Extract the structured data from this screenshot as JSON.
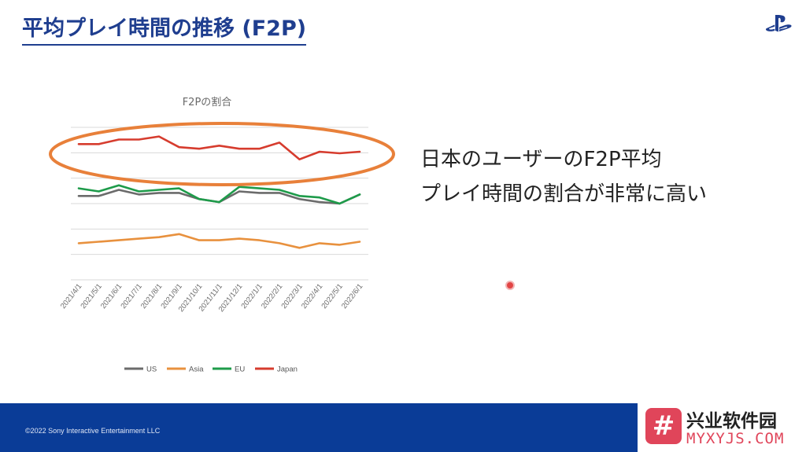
{
  "slide": {
    "title": "平均プレイ時間の推移 (F2P)",
    "callout_line1": "日本のユーザーのF2P平均",
    "callout_line2": "プレイ時間の割合が非常に高い",
    "copyright": "©2022 Sony Interactive Entertainment LLC"
  },
  "watermark": {
    "badge": "#",
    "cn": "兴业软件园",
    "en": "MYXYJS.COM"
  },
  "colors": {
    "title": "#1f3e8f",
    "footer": "#0a3c97",
    "highlight_ellipse": "#e8803a",
    "US": "#6b6b6b",
    "Asia": "#e8913e",
    "EU": "#1e9b4a",
    "Japan": "#d63c2e"
  },
  "chart_data": {
    "type": "line",
    "title": "F2Pの割合",
    "x": [
      "2021/4/1",
      "2021/5/1",
      "2021/6/1",
      "2021/7/1",
      "2021/8/1",
      "2021/9/1",
      "2021/10/1",
      "2021/11/1",
      "2021/12/1",
      "2022/1/1",
      "2022/2/1",
      "2022/3/1",
      "2022/4/1",
      "2022/5/1",
      "2022/6/1"
    ],
    "series": [
      {
        "name": "US",
        "values": [
          5.5,
          5.5,
          5.9,
          5.6,
          5.7,
          5.7,
          5.3,
          5.1,
          5.8,
          5.7,
          5.7,
          5.3,
          5.1,
          5.0,
          5.6
        ]
      },
      {
        "name": "Asia",
        "values": [
          2.4,
          2.5,
          2.6,
          2.7,
          2.8,
          3.0,
          2.6,
          2.6,
          2.7,
          2.6,
          2.4,
          2.1,
          2.4,
          2.3,
          2.5
        ]
      },
      {
        "name": "EU",
        "values": [
          6.0,
          5.8,
          6.2,
          5.8,
          5.9,
          6.0,
          5.3,
          5.1,
          6.1,
          6.0,
          5.9,
          5.5,
          5.4,
          5.0,
          5.6
        ]
      },
      {
        "name": "Japan",
        "values": [
          8.9,
          8.9,
          9.2,
          9.2,
          9.4,
          8.7,
          8.6,
          8.8,
          8.6,
          8.6,
          9.0,
          7.9,
          8.4,
          8.3,
          8.4
        ]
      }
    ],
    "ylim": [
      0,
      10
    ],
    "grid": true,
    "legend_position": "bottom",
    "y_tick_labels_shown": false,
    "highlight": "ellipse around Japan series"
  }
}
